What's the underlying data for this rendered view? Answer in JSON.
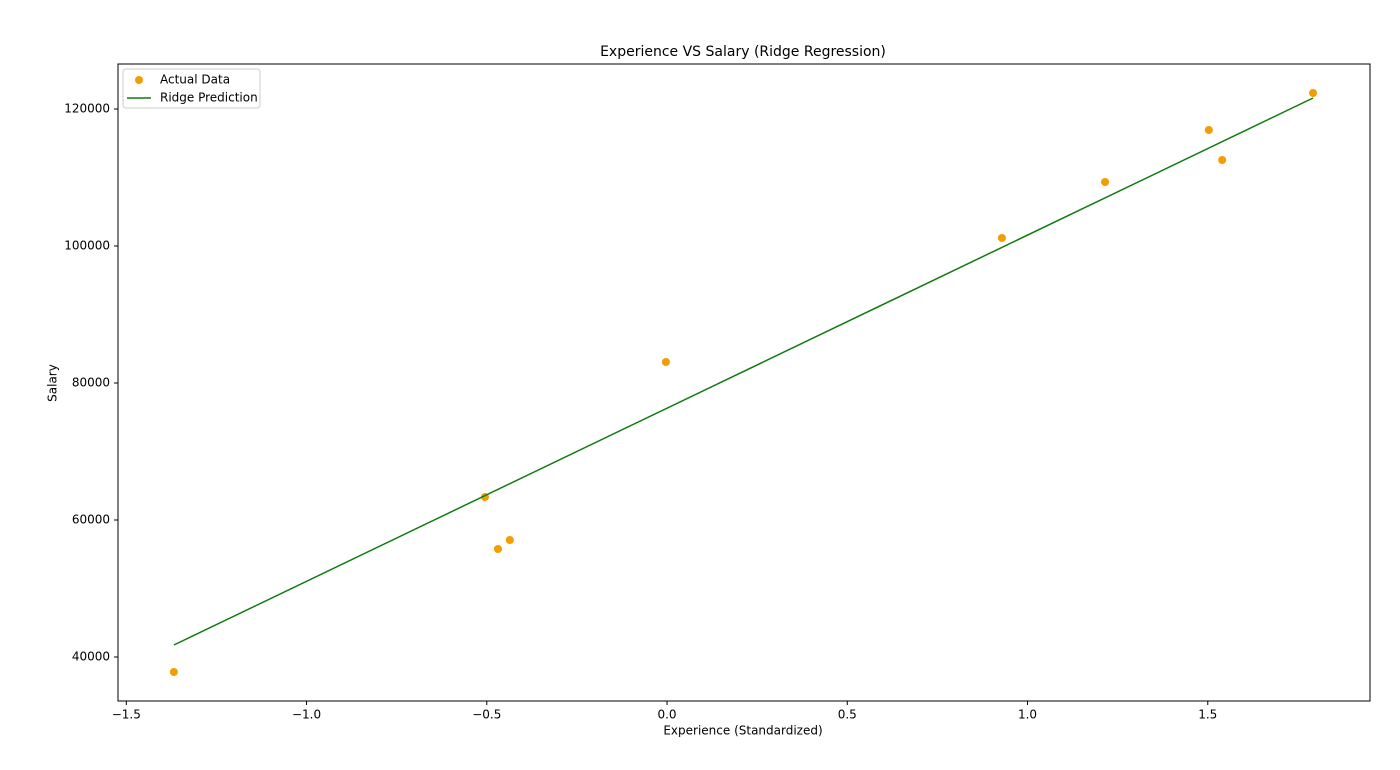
{
  "chart_data": {
    "type": "scatter",
    "title": "Experience VS Salary (Ridge Regression)",
    "x_label": "Experience (Standardized)",
    "y_label": "Salary",
    "xlim": [
      -1.523,
      1.95
    ],
    "ylim": [
      33577,
      126570
    ],
    "xticks": [
      {
        "value": -1.5,
        "label": "−1.5"
      },
      {
        "value": -1.0,
        "label": "−1.0"
      },
      {
        "value": -0.5,
        "label": "−0.5"
      },
      {
        "value": 0,
        "label": "0.0"
      },
      {
        "value": 0.5,
        "label": "0.5"
      },
      {
        "value": 1.0,
        "label": "1.0"
      },
      {
        "value": 1.5,
        "label": "1.5"
      }
    ],
    "yticks": [
      40000,
      60000,
      80000,
      100000,
      120000
    ],
    "grid": false,
    "legend": "upper left",
    "series": [
      {
        "name": "Actual Data",
        "type": "scatter",
        "color": "#f59c00",
        "x": [
          -1.368,
          -0.505,
          -0.469,
          -0.436,
          -0.003,
          0.929,
          1.215,
          1.503,
          1.54,
          1.792
        ],
        "values": [
          37810,
          63358,
          55766,
          57080,
          83066,
          101168,
          109343,
          116934,
          112555,
          122336
        ]
      },
      {
        "name": "Ridge Prediction",
        "type": "line",
        "color": "#107b10",
        "x": [
          -1.368,
          1.792
        ],
        "values": [
          41752,
          121606
        ]
      }
    ]
  }
}
